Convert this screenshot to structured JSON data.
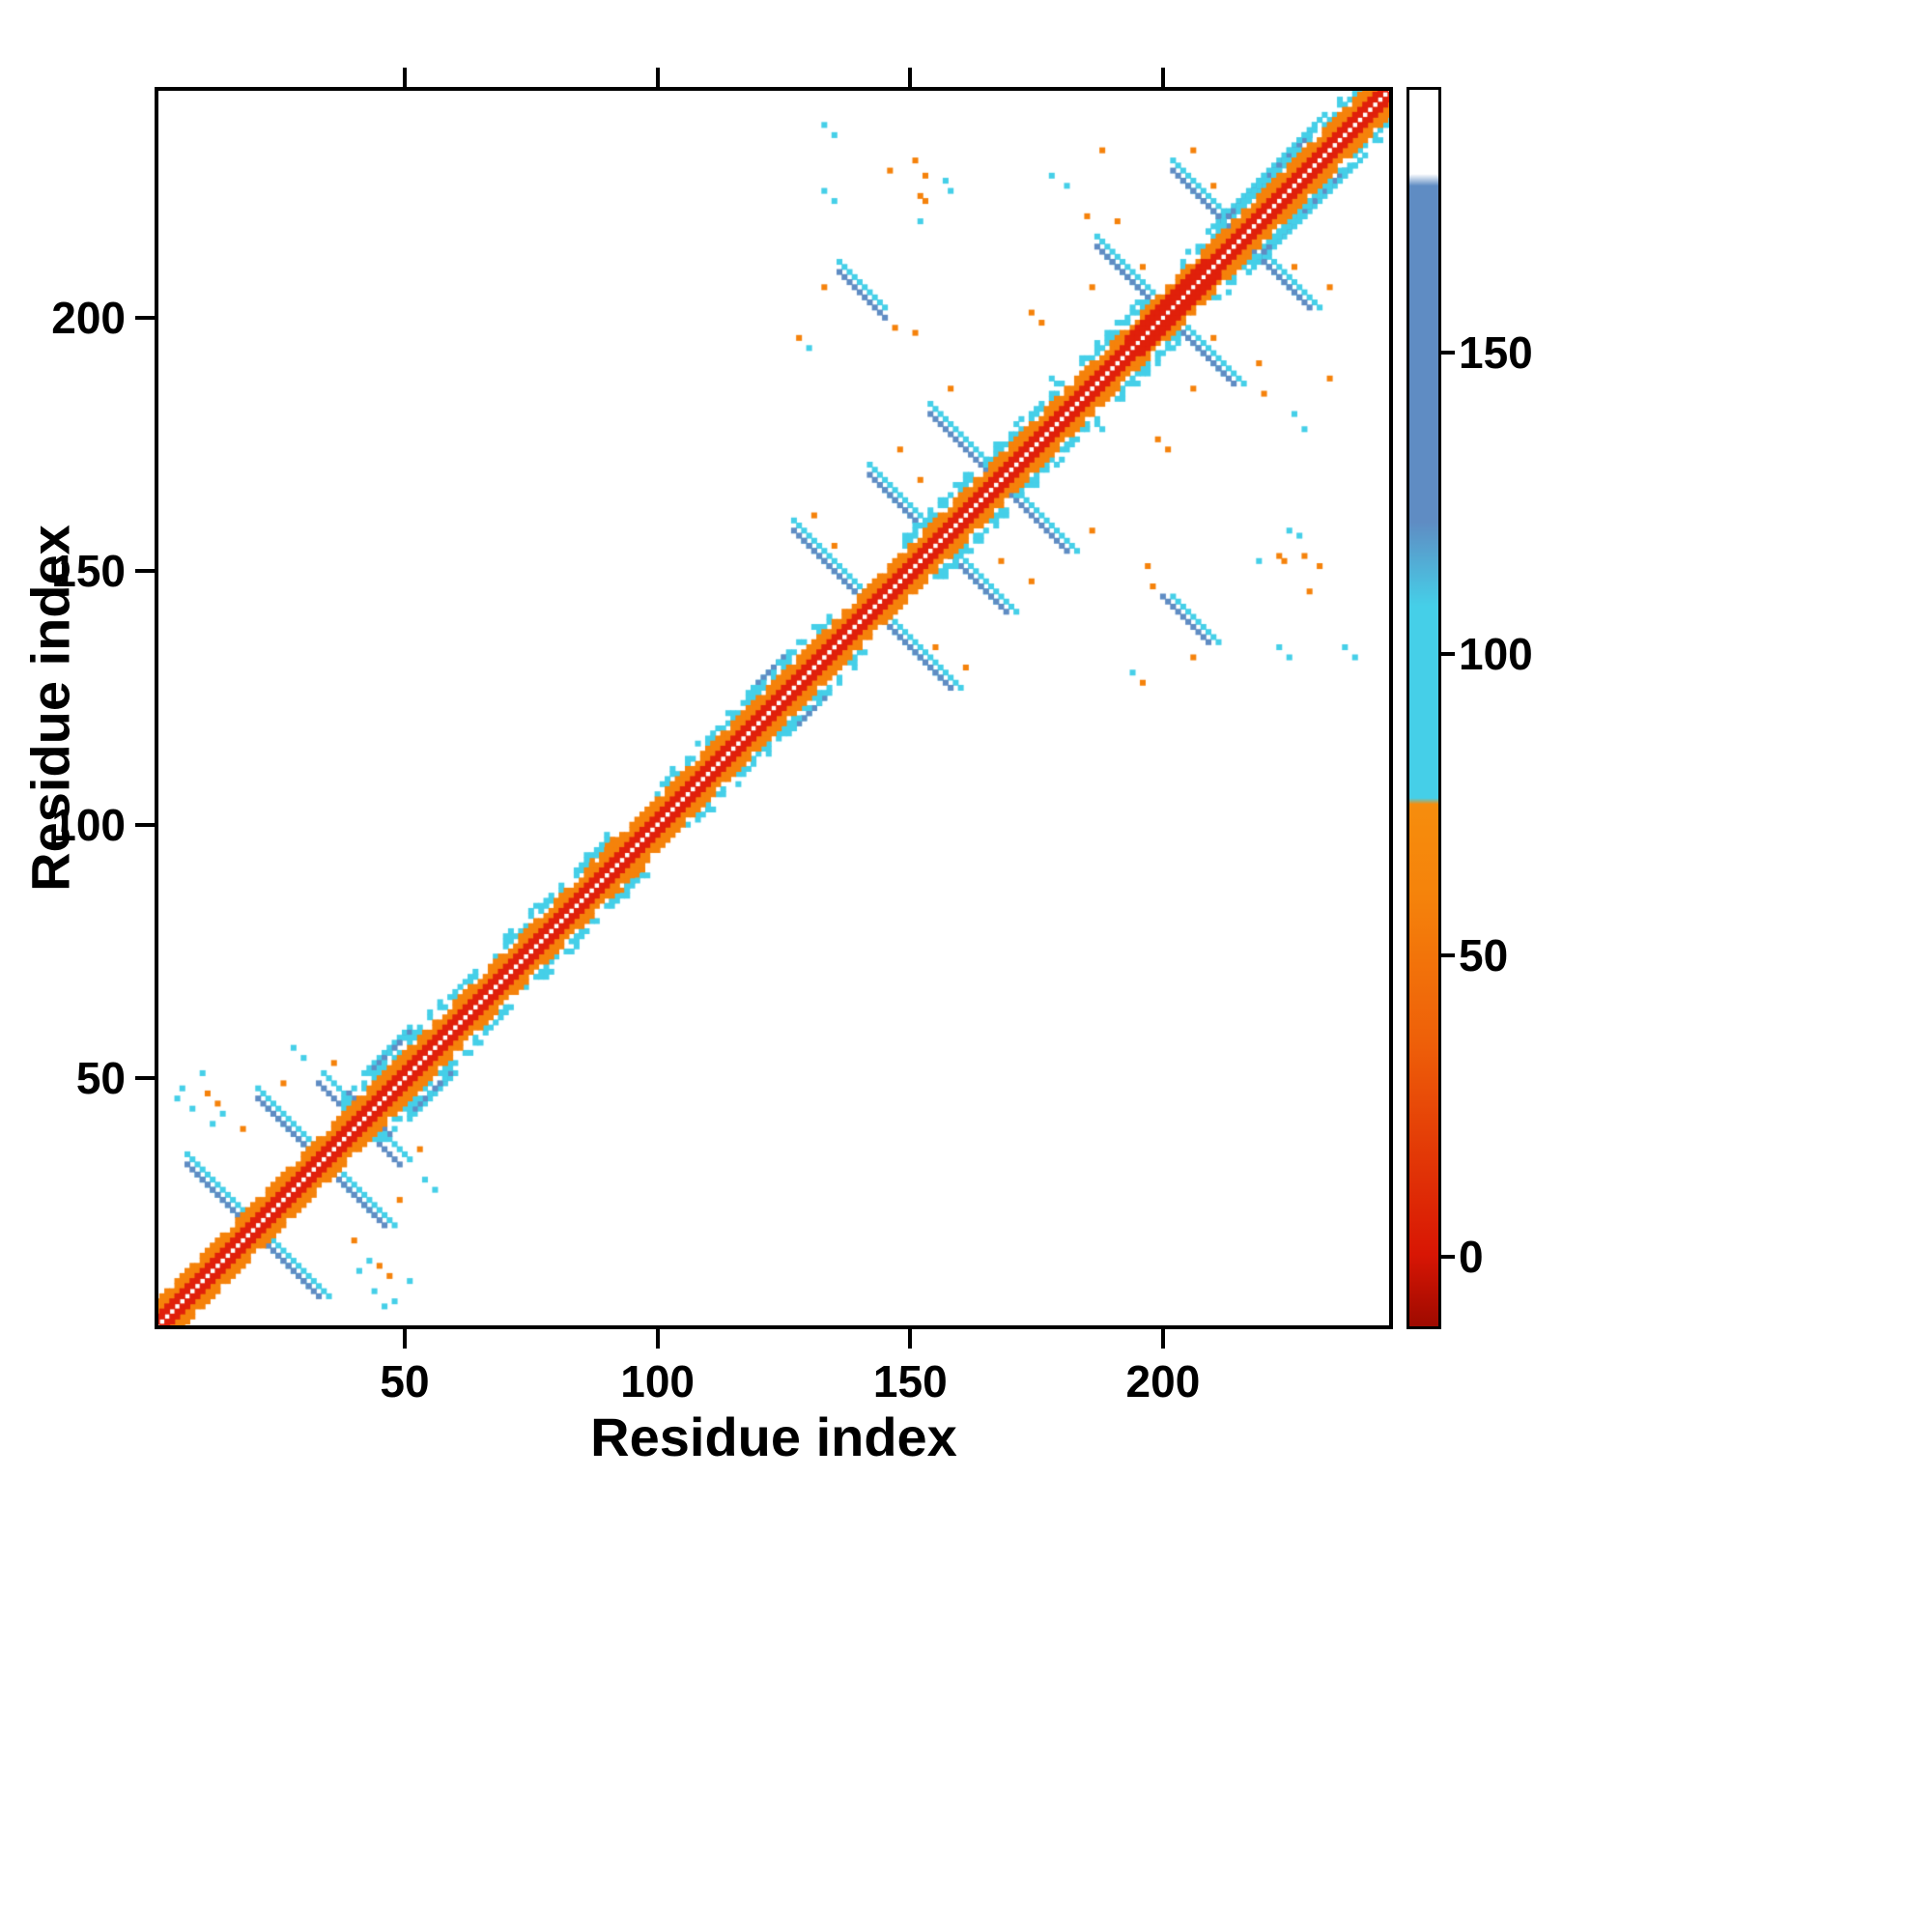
{
  "chart_data": {
    "type": "heatmap",
    "subtype": "protein-contact-map",
    "title": "",
    "xlabel": "Residue index",
    "ylabel": "Residue index",
    "x_range": [
      1,
      245
    ],
    "y_range": [
      1,
      245
    ],
    "x_ticks": [
      50,
      100,
      150,
      200
    ],
    "y_ticks": [
      50,
      100,
      150,
      200
    ],
    "grid": false,
    "background": "#ffffff",
    "symmetric": true,
    "colors": {
      "red": "#e0200b",
      "dark_red": "#cb1000",
      "orange": "#f5820b",
      "cyan": "#45cfe8",
      "blue": "#5f8cc3",
      "white": "#ffffff",
      "frame": "#000000"
    },
    "colorbar": {
      "position": "right",
      "ticks": [
        0,
        50,
        100,
        150
      ],
      "range": [
        -12,
        194
      ],
      "stops": [
        {
          "v": -12,
          "c": "#9e0a00"
        },
        {
          "v": 0,
          "c": "#d81604"
        },
        {
          "v": 35,
          "c": "#ee5f09"
        },
        {
          "v": 60,
          "c": "#f5830b"
        },
        {
          "v": 75,
          "c": "#f68d0d"
        },
        {
          "v": 76,
          "c": "#45cfe8"
        },
        {
          "v": 108,
          "c": "#45cfe8"
        },
        {
          "v": 122,
          "c": "#5f8cc3"
        },
        {
          "v": 178,
          "c": "#5f8cc3"
        },
        {
          "v": 180,
          "c": "#ffffff"
        },
        {
          "v": 194,
          "c": "#ffffff"
        }
      ]
    },
    "diagonal": {
      "start": 1,
      "end": 245,
      "red_offsets": [
        1,
        2
      ],
      "orange_offsets": [
        3,
        4,
        5
      ],
      "thick_red_ranges": [
        [
          193,
          208
        ]
      ],
      "cyan_fringe_ranges": [
        [
          38,
          64
        ],
        [
          68,
          90
        ],
        [
          100,
          134
        ],
        [
          148,
          180
        ],
        [
          184,
          198
        ],
        [
          204,
          243
        ]
      ],
      "fringe_offsets": [
        6,
        7,
        8
      ]
    },
    "segments": [
      {
        "i": 7,
        "j": 33,
        "len": 13,
        "dir": "ap",
        "color": "blue"
      },
      {
        "i": 21,
        "j": 46,
        "len": 12,
        "dir": "ap",
        "color": "blue"
      },
      {
        "i": 33,
        "j": 49,
        "len": 5,
        "dir": "ap",
        "color": "blue"
      },
      {
        "i": 39,
        "j": 47,
        "len": 4,
        "dir": "ap",
        "color": "blue"
      },
      {
        "i": 127,
        "j": 158,
        "len": 15,
        "dir": "ap",
        "color": "blue"
      },
      {
        "i": 142,
        "j": 169,
        "len": 13,
        "dir": "ap",
        "color": "blue"
      },
      {
        "i": 154,
        "j": 181,
        "len": 12,
        "dir": "ap",
        "color": "blue"
      },
      {
        "i": 136,
        "j": 209,
        "len": 10,
        "dir": "ap",
        "color": "blue"
      },
      {
        "i": 187,
        "j": 214,
        "len": 14,
        "dir": "ap",
        "color": "blue"
      },
      {
        "i": 202,
        "j": 229,
        "len": 13,
        "dir": "ap",
        "color": "blue"
      },
      {
        "i": 44,
        "j": 52,
        "len": 8,
        "dir": "p",
        "color": "blue"
      },
      {
        "i": 120,
        "j": 128,
        "len": 6,
        "dir": "p",
        "color": "blue"
      },
      {
        "i": 212,
        "j": 219,
        "len": 18,
        "dir": "p",
        "color": "blue"
      },
      {
        "i": 7,
        "j": 35,
        "len": 14,
        "dir": "ap",
        "color": "cyan"
      },
      {
        "i": 9,
        "j": 31,
        "len": 11,
        "dir": "ap",
        "color": "cyan"
      },
      {
        "i": 21,
        "j": 48,
        "len": 12,
        "dir": "ap",
        "color": "cyan"
      },
      {
        "i": 23,
        "j": 44,
        "len": 10,
        "dir": "ap",
        "color": "cyan"
      },
      {
        "i": 34,
        "j": 51,
        "len": 5,
        "dir": "ap",
        "color": "cyan"
      },
      {
        "i": 127,
        "j": 160,
        "len": 15,
        "dir": "ap",
        "color": "cyan"
      },
      {
        "i": 129,
        "j": 156,
        "len": 12,
        "dir": "ap",
        "color": "cyan"
      },
      {
        "i": 142,
        "j": 171,
        "len": 13,
        "dir": "ap",
        "color": "cyan"
      },
      {
        "i": 144,
        "j": 167,
        "len": 10,
        "dir": "ap",
        "color": "cyan"
      },
      {
        "i": 154,
        "j": 183,
        "len": 12,
        "dir": "ap",
        "color": "cyan"
      },
      {
        "i": 136,
        "j": 211,
        "len": 10,
        "dir": "ap",
        "color": "cyan"
      },
      {
        "i": 187,
        "j": 216,
        "len": 14,
        "dir": "ap",
        "color": "cyan"
      },
      {
        "i": 189,
        "j": 212,
        "len": 11,
        "dir": "ap",
        "color": "cyan"
      },
      {
        "i": 202,
        "j": 231,
        "len": 13,
        "dir": "ap",
        "color": "cyan"
      },
      {
        "i": 204,
        "j": 227,
        "len": 10,
        "dir": "ap",
        "color": "cyan"
      },
      {
        "i": 42,
        "j": 51,
        "len": 10,
        "dir": "p",
        "color": "cyan"
      },
      {
        "i": 118,
        "j": 126,
        "len": 9,
        "dir": "p",
        "color": "cyan"
      },
      {
        "i": 209,
        "j": 217,
        "len": 24,
        "dir": "p",
        "color": "cyan"
      },
      {
        "i": 214,
        "j": 220,
        "len": 12,
        "dir": "p",
        "color": "cyan"
      },
      {
        "i": 85,
        "j": 91,
        "len": 7,
        "dir": "p",
        "color": "orange"
      },
      {
        "i": 87,
        "j": 93,
        "len": 5,
        "dir": "p",
        "color": "orange"
      }
    ],
    "dots": {
      "cyan": [
        [
          5,
          46
        ],
        [
          6,
          48
        ],
        [
          10,
          51
        ],
        [
          28,
          56
        ],
        [
          30,
          54
        ],
        [
          8,
          44
        ],
        [
          12,
          41
        ],
        [
          14,
          43
        ],
        [
          130,
          194
        ],
        [
          133,
          225
        ],
        [
          135,
          223
        ],
        [
          152,
          219
        ],
        [
          158,
          225
        ],
        [
          178,
          228
        ],
        [
          181,
          226
        ],
        [
          157,
          227
        ],
        [
          135,
          236
        ],
        [
          133,
          238
        ],
        [
          178,
          188
        ]
      ],
      "orange": [
        [
          13,
          45
        ],
        [
          26,
          49
        ],
        [
          36,
          53
        ],
        [
          18,
          40
        ],
        [
          11,
          47
        ],
        [
          131,
          161
        ],
        [
          135,
          155
        ],
        [
          148,
          174
        ],
        [
          152,
          168
        ],
        [
          158,
          186
        ],
        [
          133,
          206
        ],
        [
          147,
          198
        ],
        [
          128,
          196
        ],
        [
          191,
          219
        ],
        [
          196,
          210
        ],
        [
          206,
          233
        ],
        [
          210,
          226
        ],
        [
          186,
          206
        ],
        [
          151,
          231
        ],
        [
          153,
          228
        ],
        [
          174,
          201
        ],
        [
          176,
          199
        ],
        [
          188,
          233
        ],
        [
          185,
          220
        ],
        [
          146,
          229
        ],
        [
          153,
          223
        ],
        [
          151,
          197
        ],
        [
          152,
          224
        ]
      ]
    }
  }
}
